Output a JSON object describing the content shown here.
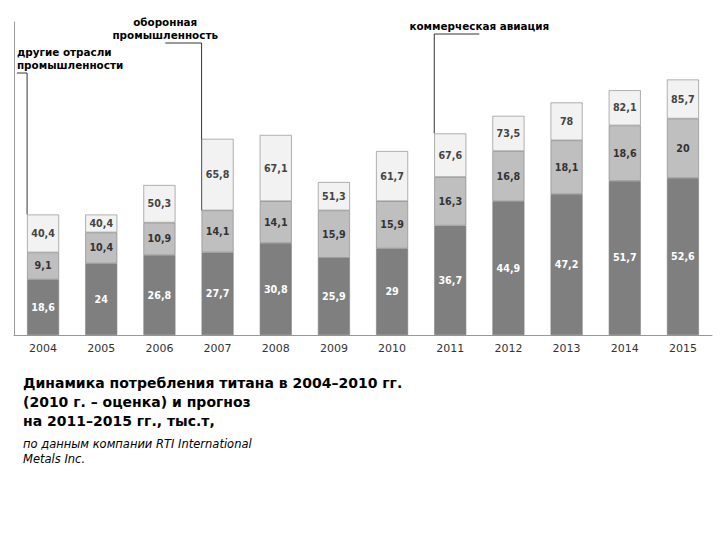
{
  "chart_data": {
    "type": "bar",
    "title": "Динамика потребления титана в 2004–2010 гг.\n(2010 г. – оценка) и прогноз\nна 2011–2015 гг., тыс.т,",
    "subtitle": "по данным компании RTI International\nMetals Inc.",
    "categories": [
      "2004",
      "2005",
      "2006",
      "2007",
      "2008",
      "2009",
      "2010",
      "2011",
      "2012",
      "2013",
      "2014",
      "2015"
    ],
    "series": [
      {
        "color": "#7f7f7f",
        "values": [
          18.6,
          24.0,
          26.8,
          27.7,
          30.8,
          25.9,
          29.0,
          36.7,
          44.9,
          47.2,
          51.7,
          52.6
        ],
        "value_labels": [
          "18,6",
          "24",
          "26,8",
          "27,7",
          "30,8",
          "25,9",
          "29",
          "36,7",
          "44,9",
          "47,2",
          "51,7",
          "52,6"
        ]
      },
      {
        "color": "#bfbfbf",
        "values": [
          9.1,
          10.4,
          10.9,
          14.1,
          14.1,
          15.9,
          15.9,
          16.3,
          16.8,
          18.1,
          18.6,
          20.0
        ],
        "value_labels": [
          "9,1",
          "10,4",
          "10,9",
          "14,1",
          "14,1",
          "15,9",
          "15,9",
          "16,3",
          "16,8",
          "18,1",
          "18,6",
          "20"
        ]
      },
      {
        "color": "#f2f2f2",
        "values": [
          12.7,
          6.0,
          12.6,
          24.0,
          22.2,
          9.5,
          16.8,
          14.6,
          11.8,
          12.7,
          11.8,
          13.1
        ],
        "data_labels": false
      }
    ],
    "totals": [
      40.4,
      40.4,
      50.3,
      65.8,
      67.1,
      51.3,
      61.7,
      67.6,
      73.5,
      78.0,
      82.1,
      85.7
    ],
    "total_labels": [
      "40,4",
      "40,4",
      "50,3",
      "65,8",
      "67,1",
      "51,3",
      "61,7",
      "67,6",
      "73,5",
      "78",
      "82,1",
      "85,7"
    ],
    "annotations": [
      "другие отрасли\nпромышленности",
      "оборонная\nпромышленность",
      "коммерческая авиация"
    ],
    "ylim": [
      0,
      105
    ],
    "stacked": true,
    "data_labels": true,
    "tick_labels": "x",
    "grid": false
  }
}
